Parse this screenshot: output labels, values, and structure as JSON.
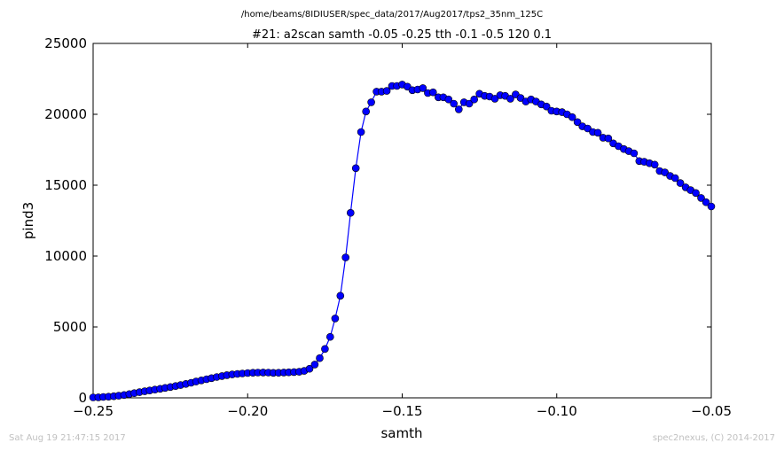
{
  "chart_data": {
    "type": "line",
    "suptitle": "/home/beams/8IDIUSER/spec_data/2017/Aug2017/tps2_35nm_125C",
    "title": "#21: a2scan  samth -0.05 -0.25  tth -0.1 -0.5  120 0.1",
    "xlabel": "samth",
    "ylabel": "pind3",
    "xlim": [
      -0.25,
      -0.05
    ],
    "ylim": [
      0,
      25000
    ],
    "xticks": [
      -0.25,
      -0.2,
      -0.15,
      -0.1,
      -0.05
    ],
    "xtick_labels": [
      "−0.25",
      "−0.20",
      "−0.15",
      "−0.10",
      "−0.05"
    ],
    "yticks": [
      0,
      5000,
      10000,
      15000,
      20000,
      25000
    ],
    "ytick_labels": [
      "0",
      "5000",
      "10000",
      "15000",
      "20000",
      "25000"
    ],
    "grid": false,
    "line_color": "#0000ff",
    "marker_color": "#0000ff",
    "marker": "circle",
    "series": [
      {
        "x": [
          -0.25,
          -0.2483,
          -0.2467,
          -0.245,
          -0.2433,
          -0.2417,
          -0.24,
          -0.2383,
          -0.2367,
          -0.235,
          -0.2333,
          -0.2317,
          -0.23,
          -0.2283,
          -0.2267,
          -0.225,
          -0.2233,
          -0.2217,
          -0.22,
          -0.2183,
          -0.2167,
          -0.215,
          -0.2133,
          -0.2117,
          -0.21,
          -0.2083,
          -0.2067,
          -0.205,
          -0.2033,
          -0.2017,
          -0.2,
          -0.1983,
          -0.1967,
          -0.195,
          -0.1933,
          -0.1917,
          -0.19,
          -0.1883,
          -0.1867,
          -0.185,
          -0.1833,
          -0.1817,
          -0.18,
          -0.1783,
          -0.1767,
          -0.175,
          -0.1733,
          -0.1717,
          -0.17,
          -0.1683,
          -0.1667,
          -0.165,
          -0.1633,
          -0.1617,
          -0.16,
          -0.1583,
          -0.1567,
          -0.155,
          -0.1533,
          -0.1517,
          -0.15,
          -0.1483,
          -0.1467,
          -0.145,
          -0.1433,
          -0.1417,
          -0.14,
          -0.1383,
          -0.1367,
          -0.135,
          -0.1333,
          -0.1317,
          -0.13,
          -0.1283,
          -0.1267,
          -0.125,
          -0.1233,
          -0.1217,
          -0.12,
          -0.1183,
          -0.1167,
          -0.115,
          -0.1133,
          -0.1117,
          -0.11,
          -0.1083,
          -0.1067,
          -0.105,
          -0.1033,
          -0.1017,
          -0.1,
          -0.0983,
          -0.0967,
          -0.095,
          -0.0933,
          -0.0917,
          -0.09,
          -0.0883,
          -0.0867,
          -0.085,
          -0.0833,
          -0.0817,
          -0.08,
          -0.0783,
          -0.0767,
          -0.075,
          -0.0733,
          -0.0717,
          -0.07,
          -0.0683,
          -0.0667,
          -0.065,
          -0.0633,
          -0.0617,
          -0.06,
          -0.0583,
          -0.0567,
          -0.055,
          -0.0533,
          -0.0517,
          -0.05
        ],
        "y": [
          30,
          40,
          60,
          80,
          110,
          150,
          200,
          260,
          330,
          400,
          460,
          520,
          580,
          640,
          700,
          760,
          830,
          900,
          980,
          1060,
          1150,
          1230,
          1310,
          1390,
          1470,
          1540,
          1600,
          1650,
          1690,
          1720,
          1750,
          1770,
          1780,
          1790,
          1780,
          1760,
          1770,
          1790,
          1800,
          1820,
          1840,
          1900,
          2050,
          2350,
          2800,
          3450,
          4300,
          5600,
          7200,
          9900,
          13050,
          16200,
          18750,
          20200,
          20850,
          21600,
          21600,
          21650,
          22000,
          22000,
          22100,
          21950,
          21700,
          21750,
          21850,
          21500,
          21550,
          21200,
          21200,
          21050,
          20750,
          20350,
          20850,
          20750,
          21050,
          21450,
          21300,
          21250,
          21100,
          21350,
          21300,
          21100,
          21400,
          21150,
          20900,
          21050,
          20900,
          20700,
          20550,
          20250,
          20200,
          20150,
          20000,
          19800,
          19450,
          19150,
          19000,
          18750,
          18700,
          18350,
          18300,
          17950,
          17750,
          17550,
          17400,
          17250,
          16700,
          16650,
          16550,
          16450,
          16000,
          15900,
          15650,
          15500,
          15150,
          14850,
          14650,
          14450,
          14100,
          13800,
          13500
        ]
      }
    ]
  },
  "footer": {
    "left": "Sat Aug 19 21:47:15 2017",
    "right": "spec2nexus, (C) 2014-2017"
  }
}
